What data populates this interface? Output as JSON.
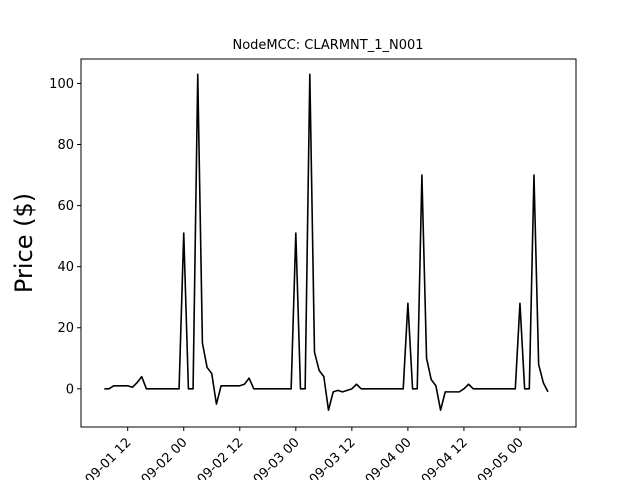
{
  "chart_data": {
    "type": "line",
    "title": "NodeMCC: CLARMNT_1_N001",
    "y_label": "Price ($)",
    "x": [
      "09-01 07",
      "09-01 08",
      "09-01 09",
      "09-01 10",
      "09-01 11",
      "09-01 12",
      "09-01 13",
      "09-01 14",
      "09-01 15",
      "09-01 16",
      "09-01 17",
      "09-01 18",
      "09-01 19",
      "09-01 20",
      "09-01 21",
      "09-01 22",
      "09-01 23",
      "09-02 00",
      "09-02 01",
      "09-02 02",
      "09-02 03",
      "09-02 04",
      "09-02 05",
      "09-02 06",
      "09-02 07",
      "09-02 08",
      "09-02 09",
      "09-02 10",
      "09-02 11",
      "09-02 12",
      "09-02 13",
      "09-02 14",
      "09-02 15",
      "09-02 16",
      "09-02 17",
      "09-02 18",
      "09-02 19",
      "09-02 20",
      "09-02 21",
      "09-02 22",
      "09-02 23",
      "09-03 00",
      "09-03 01",
      "09-03 02",
      "09-03 03",
      "09-03 04",
      "09-03 05",
      "09-03 06",
      "09-03 07",
      "09-03 08",
      "09-03 09",
      "09-03 10",
      "09-03 11",
      "09-03 12",
      "09-03 13",
      "09-03 14",
      "09-03 15",
      "09-03 16",
      "09-03 17",
      "09-03 18",
      "09-03 19",
      "09-03 20",
      "09-03 21",
      "09-03 22",
      "09-03 23",
      "09-04 00",
      "09-04 01",
      "09-04 02",
      "09-04 03",
      "09-04 04",
      "09-04 05",
      "09-04 06",
      "09-04 07",
      "09-04 08",
      "09-04 09",
      "09-04 10",
      "09-04 11",
      "09-04 12",
      "09-04 13",
      "09-04 14",
      "09-04 15",
      "09-04 16",
      "09-04 17",
      "09-04 18",
      "09-04 19",
      "09-04 20",
      "09-04 21",
      "09-04 22",
      "09-04 23",
      "09-05 00",
      "09-05 01",
      "09-05 02",
      "09-05 03",
      "09-05 04",
      "09-05 05",
      "09-05 06"
    ],
    "series": [
      {
        "name": "CLARMNT_1_N001",
        "color": "#000000",
        "values": [
          0,
          0,
          1,
          1,
          1,
          1,
          0.5,
          2,
          4,
          0,
          0,
          0,
          0,
          0,
          0,
          0,
          0,
          51,
          0,
          0,
          103,
          15,
          7,
          5,
          -5,
          1,
          1,
          1,
          1,
          1,
          1.5,
          3.5,
          0,
          0,
          0,
          0,
          0,
          0,
          0,
          0,
          0,
          51,
          0,
          0,
          103,
          12,
          6,
          4,
          -7,
          -1,
          -0.5,
          -1,
          -0.5,
          0,
          1.5,
          0,
          0,
          0,
          0,
          0,
          0,
          0,
          0,
          0,
          0,
          28,
          0,
          0,
          70,
          10,
          3,
          1,
          -7,
          -1,
          -1,
          -1,
          -1,
          0,
          1.5,
          0,
          0,
          0,
          0,
          0,
          0,
          0,
          0,
          0,
          0,
          28,
          0,
          0,
          70,
          8,
          2,
          -1
        ]
      }
    ],
    "xlim": [
      "09-01 02",
      "09-05 12"
    ],
    "xticks": [
      "09-01 12",
      "09-02 00",
      "09-02 12",
      "09-03 00",
      "09-03 12",
      "09-04 00",
      "09-04 12",
      "09-05 00"
    ],
    "ylim": [
      -12.5,
      108
    ],
    "yticks": [
      0,
      20,
      40,
      60,
      80,
      100
    ]
  }
}
